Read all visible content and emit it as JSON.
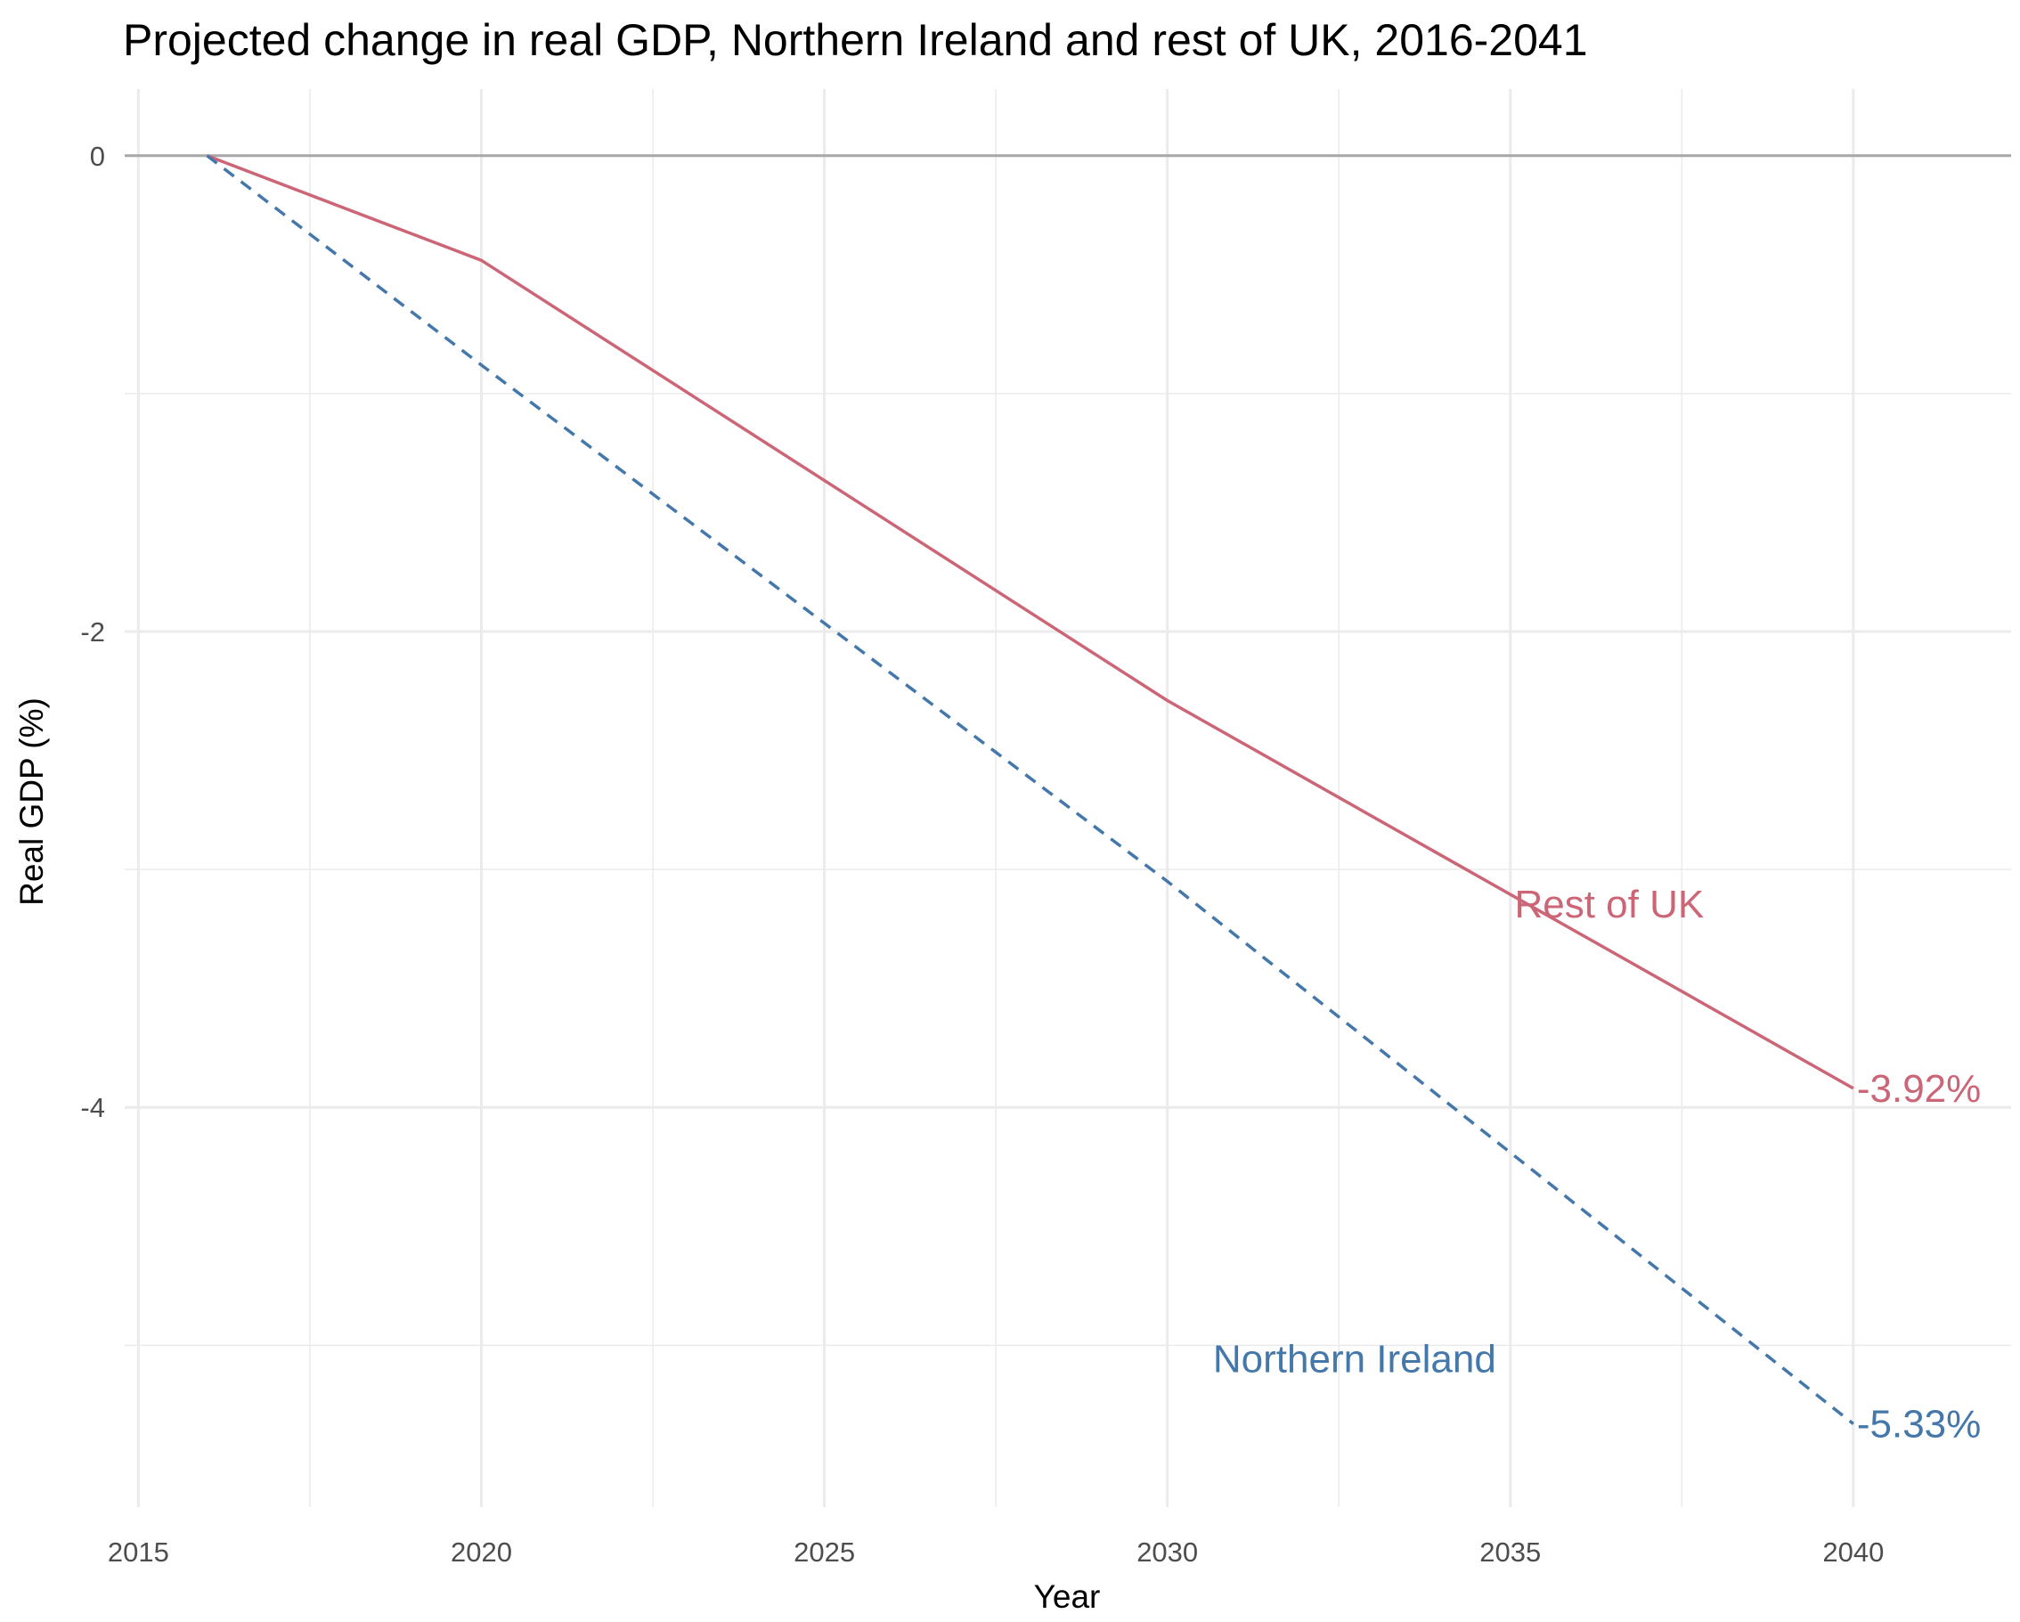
{
  "chart_data": {
    "type": "line",
    "title": "Projected change in real GDP, Northern Ireland and rest of UK, 2016-2041",
    "xlabel": "Year",
    "ylabel": "Real GDP (%)",
    "xlim": [
      2014.8,
      2042.3
    ],
    "ylim": [
      -5.68,
      0.28
    ],
    "x_ticks": [
      2015,
      2020,
      2025,
      2030,
      2035,
      2040
    ],
    "x_tick_labels": [
      "2015",
      "2020",
      "2025",
      "2030",
      "2035",
      "2040"
    ],
    "y_ticks": [
      0,
      -2,
      -4
    ],
    "y_tick_labels": [
      "0",
      "-2",
      "-4"
    ],
    "grid": true,
    "zero_line": true,
    "series": [
      {
        "name": "Rest of UK",
        "color": "#cc6677",
        "linestyle": "solid",
        "x": [
          2016,
          2020,
          2030,
          2040
        ],
        "y": [
          0,
          -0.44,
          -2.29,
          -3.92
        ],
        "end_label": "-3.92%"
      },
      {
        "name": "Northern Ireland",
        "color": "#4477aa",
        "linestyle": "dashed",
        "x": [
          2016,
          2020,
          2030,
          2040
        ],
        "y": [
          0,
          -0.88,
          -3.05,
          -5.33
        ],
        "end_label": "-5.33%"
      }
    ]
  }
}
